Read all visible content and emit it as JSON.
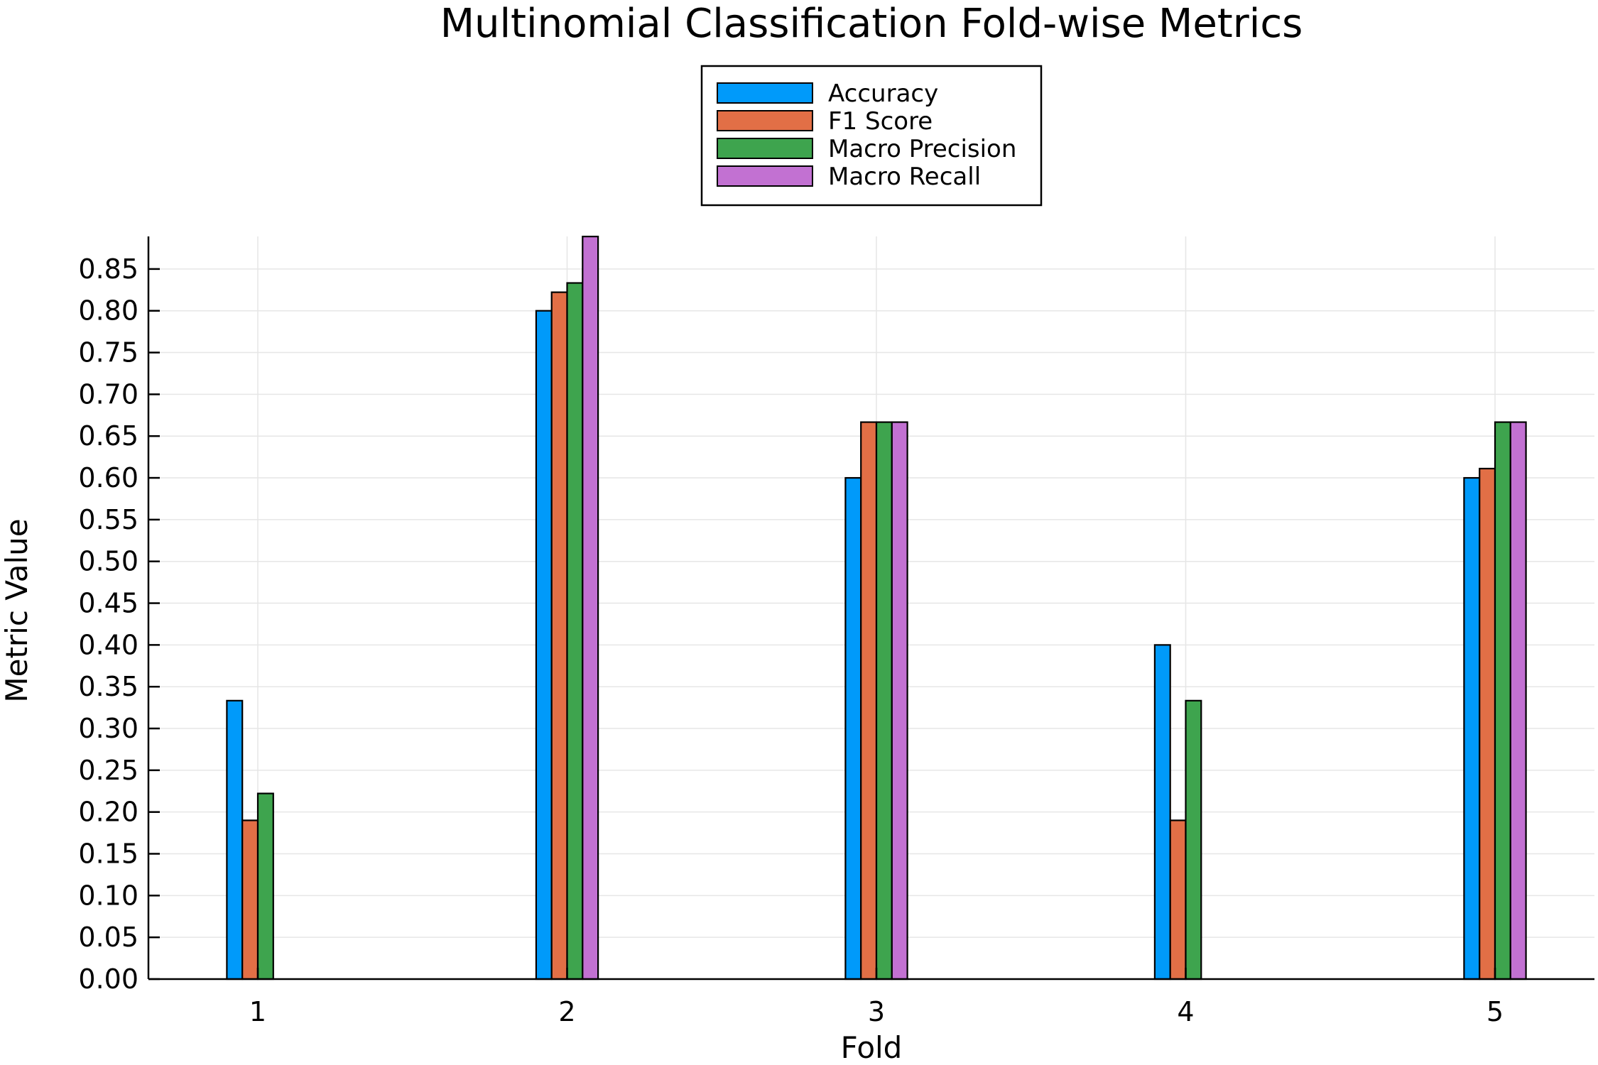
{
  "chart_data": {
    "type": "bar",
    "title": "Multinomial Classification Fold-wise Metrics",
    "xlabel": "Fold",
    "ylabel": "Metric Value",
    "categories": [
      "1",
      "2",
      "3",
      "4",
      "5"
    ],
    "series": [
      {
        "name": "Accuracy",
        "color": "#009AFA",
        "values": [
          0.3333,
          0.8,
          0.6,
          0.4,
          0.6
        ]
      },
      {
        "name": "F1 Score",
        "color": "#E26F46",
        "values": [
          0.19,
          0.8222,
          0.6667,
          0.19,
          0.6111
        ]
      },
      {
        "name": "Macro Precision",
        "color": "#3EA44E",
        "values": [
          0.2222,
          0.8333,
          0.6667,
          0.3333,
          0.6667
        ]
      },
      {
        "name": "Macro Recall",
        "color": "#C271D2",
        "values": [
          0.0,
          0.8889,
          0.6667,
          0.0,
          0.6667
        ]
      }
    ],
    "ylim": [
      0,
      0.889
    ],
    "yticks": [
      "0.00",
      "0.05",
      "0.10",
      "0.15",
      "0.20",
      "0.25",
      "0.30",
      "0.35",
      "0.40",
      "0.45",
      "0.50",
      "0.55",
      "0.60",
      "0.65",
      "0.70",
      "0.75",
      "0.80",
      "0.85"
    ],
    "grid": true,
    "legend_position": "top-center"
  }
}
